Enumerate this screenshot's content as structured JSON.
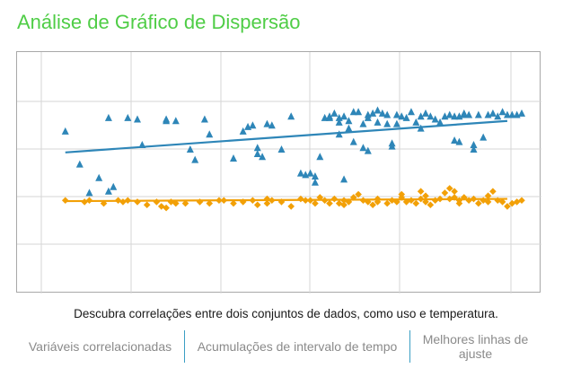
{
  "page": {
    "title": "Análise de Gráfico de Dispersão",
    "description": "Descubra correlações entre dois conjuntos de dados, como uso e temperatura."
  },
  "features": [
    {
      "label": "Variáveis correlacionadas"
    },
    {
      "label": "Acumulações de intervalo de tempo"
    },
    {
      "label": "Melhores linhas de ajuste"
    }
  ],
  "colors": {
    "title": "#4fcd46",
    "series_a": "#2e86b8",
    "series_b": "#f2a007",
    "grid": "#d6d6d6",
    "divider": "#3a9ec4"
  },
  "chart_data": {
    "type": "scatter",
    "xlim": [
      0,
      100
    ],
    "ylim": [
      0,
      100
    ],
    "grid": true,
    "show_tick_labels": false,
    "series": [
      {
        "marker": "triangle",
        "color": "#2e86b8",
        "trendline": [
          [
            5,
            60
          ],
          [
            97,
            81
          ]
        ],
        "points": [
          [
            5,
            74
          ],
          [
            8,
            52
          ],
          [
            10,
            33
          ],
          [
            12,
            43
          ],
          [
            14,
            34
          ],
          [
            14,
            83
          ],
          [
            15,
            37
          ],
          [
            18,
            83
          ],
          [
            20,
            82
          ],
          [
            21,
            65
          ],
          [
            26,
            82
          ],
          [
            26,
            81
          ],
          [
            28,
            81
          ],
          [
            31,
            62
          ],
          [
            32,
            55
          ],
          [
            34,
            82
          ],
          [
            35,
            72
          ],
          [
            40,
            56
          ],
          [
            42,
            74
          ],
          [
            43,
            77
          ],
          [
            44,
            78
          ],
          [
            45,
            63
          ],
          [
            45,
            59
          ],
          [
            46,
            57
          ],
          [
            47,
            79
          ],
          [
            48,
            78
          ],
          [
            50,
            62
          ],
          [
            52,
            84
          ],
          [
            54,
            46
          ],
          [
            55,
            45
          ],
          [
            56,
            46
          ],
          [
            57,
            44
          ],
          [
            57,
            40
          ],
          [
            58,
            57
          ],
          [
            59,
            83
          ],
          [
            60,
            83
          ],
          [
            60,
            84
          ],
          [
            61,
            86
          ],
          [
            62,
            83
          ],
          [
            62,
            80
          ],
          [
            62,
            72
          ],
          [
            63,
            42
          ],
          [
            63,
            84
          ],
          [
            64,
            81
          ],
          [
            64,
            76
          ],
          [
            65,
            87
          ],
          [
            65,
            67
          ],
          [
            66,
            87
          ],
          [
            67,
            79
          ],
          [
            67,
            63
          ],
          [
            68,
            83
          ],
          [
            68,
            85
          ],
          [
            68,
            61
          ],
          [
            69,
            86
          ],
          [
            70,
            88
          ],
          [
            70,
            80
          ],
          [
            71,
            86
          ],
          [
            72,
            85
          ],
          [
            72,
            79
          ],
          [
            73,
            66
          ],
          [
            73,
            64
          ],
          [
            74,
            85
          ],
          [
            74,
            79
          ],
          [
            75,
            84
          ],
          [
            76,
            83
          ],
          [
            77,
            87
          ],
          [
            78,
            80
          ],
          [
            79,
            76
          ],
          [
            79,
            84
          ],
          [
            80,
            86
          ],
          [
            81,
            84
          ],
          [
            82,
            82
          ],
          [
            83,
            80
          ],
          [
            84,
            84
          ],
          [
            85,
            85
          ],
          [
            86,
            84
          ],
          [
            86,
            68
          ],
          [
            87,
            84
          ],
          [
            87,
            67
          ],
          [
            88,
            86
          ],
          [
            88,
            85
          ],
          [
            89,
            85
          ],
          [
            90,
            65
          ],
          [
            90,
            62
          ],
          [
            91,
            85
          ],
          [
            92,
            70
          ],
          [
            93,
            85
          ],
          [
            94,
            86
          ],
          [
            95,
            84
          ],
          [
            96,
            87
          ],
          [
            97,
            85
          ],
          [
            98,
            85
          ],
          [
            99,
            85
          ],
          [
            100,
            86
          ]
        ]
      },
      {
        "marker": "diamond",
        "color": "#f2a007",
        "trendline": [
          [
            5,
            27.5
          ],
          [
            97,
            29
          ]
        ],
        "points": [
          [
            5,
            28
          ],
          [
            9,
            27
          ],
          [
            10,
            28
          ],
          [
            13,
            26
          ],
          [
            16,
            28
          ],
          [
            17,
            27
          ],
          [
            18,
            28
          ],
          [
            20,
            27
          ],
          [
            22,
            25
          ],
          [
            24,
            27
          ],
          [
            25,
            24
          ],
          [
            26,
            23
          ],
          [
            27,
            27
          ],
          [
            28,
            26
          ],
          [
            30,
            26
          ],
          [
            33,
            27
          ],
          [
            35,
            26
          ],
          [
            37,
            28
          ],
          [
            38,
            28
          ],
          [
            40,
            26
          ],
          [
            42,
            27
          ],
          [
            44,
            28
          ],
          [
            45,
            25
          ],
          [
            47,
            26
          ],
          [
            47,
            29
          ],
          [
            48,
            28
          ],
          [
            50,
            27
          ],
          [
            52,
            24
          ],
          [
            54,
            29
          ],
          [
            55,
            28
          ],
          [
            56,
            28
          ],
          [
            57,
            26
          ],
          [
            58,
            30
          ],
          [
            59,
            28
          ],
          [
            60,
            26
          ],
          [
            61,
            29
          ],
          [
            62,
            26
          ],
          [
            63,
            25
          ],
          [
            63,
            28
          ],
          [
            64,
            27
          ],
          [
            65,
            30
          ],
          [
            66,
            32
          ],
          [
            67,
            28
          ],
          [
            68,
            27
          ],
          [
            69,
            25
          ],
          [
            70,
            29
          ],
          [
            70,
            27
          ],
          [
            72,
            26
          ],
          [
            73,
            28
          ],
          [
            74,
            27
          ],
          [
            75,
            30
          ],
          [
            75,
            32
          ],
          [
            76,
            27
          ],
          [
            77,
            28
          ],
          [
            78,
            26
          ],
          [
            79,
            29
          ],
          [
            79,
            34
          ],
          [
            80,
            31
          ],
          [
            80,
            27
          ],
          [
            81,
            25
          ],
          [
            82,
            28
          ],
          [
            83,
            29
          ],
          [
            84,
            33
          ],
          [
            85,
            29
          ],
          [
            85,
            36
          ],
          [
            86,
            34
          ],
          [
            86,
            30
          ],
          [
            87,
            28
          ],
          [
            87,
            26
          ],
          [
            88,
            30
          ],
          [
            89,
            28
          ],
          [
            90,
            29
          ],
          [
            91,
            26
          ],
          [
            92,
            28
          ],
          [
            93,
            31
          ],
          [
            93,
            27
          ],
          [
            94,
            34
          ],
          [
            95,
            28
          ],
          [
            96,
            27
          ],
          [
            97,
            24
          ],
          [
            98,
            26
          ],
          [
            99,
            27
          ],
          [
            100,
            28
          ]
        ]
      }
    ]
  }
}
